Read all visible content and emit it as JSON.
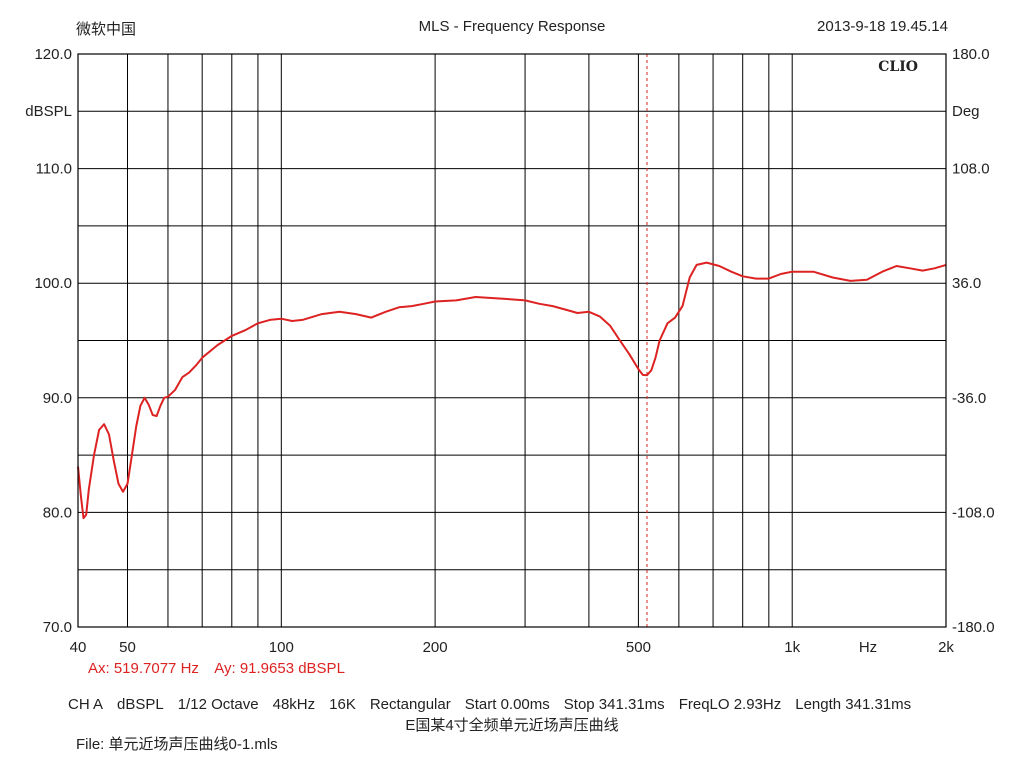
{
  "header": {
    "left": "微软中国",
    "title": "MLS - Frequency Response",
    "datetime": "2013-9-18 19.45.14"
  },
  "chart_data": {
    "type": "line",
    "brand": "CLIO",
    "x_scale": "log",
    "xlim": [
      40,
      2000
    ],
    "ylim": [
      70,
      120
    ],
    "y2lim": [
      -180,
      180
    ],
    "ylabel": "dBSPL",
    "y2label": "Deg",
    "x_unit_label": "Hz",
    "x_gridlines": [
      50,
      60,
      70,
      80,
      90,
      100,
      200,
      300,
      400,
      500,
      600,
      700,
      800,
      900,
      1000
    ],
    "x_ticks": [
      {
        "value": 40,
        "label": "40"
      },
      {
        "value": 50,
        "label": "50"
      },
      {
        "value": 100,
        "label": "100"
      },
      {
        "value": 200,
        "label": "200"
      },
      {
        "value": 500,
        "label": "500"
      },
      {
        "value": 1000,
        "label": "1k"
      },
      {
        "value": 2000,
        "label": "2k"
      }
    ],
    "y_ticks": [
      "70.0",
      "80.0",
      "90.0",
      "100.0",
      "110.0",
      "120.0"
    ],
    "y_tick_values": [
      70,
      80,
      90,
      100,
      110,
      120
    ],
    "y_minor_gridlines": [
      75,
      85,
      95,
      105,
      115
    ],
    "y2_ticks": [
      "-180.0",
      "-108.0",
      "-36.0",
      "36.0",
      "108.0",
      "180.0"
    ],
    "grid": true,
    "cursor_x": 519.7077,
    "series": [
      {
        "color": "#dd2222",
        "x": [
          40,
          40.5,
          41,
          41.5,
          42,
          43,
          44,
          45,
          46,
          47,
          48,
          49,
          50,
          51,
          52,
          53,
          54,
          55,
          56,
          57,
          58,
          59,
          60,
          62,
          64,
          66,
          68,
          70,
          75,
          80,
          85,
          90,
          95,
          100,
          105,
          110,
          120,
          130,
          140,
          150,
          160,
          170,
          180,
          190,
          200,
          220,
          240,
          260,
          280,
          300,
          320,
          340,
          360,
          380,
          400,
          420,
          440,
          460,
          480,
          500,
          510,
          519.7,
          530,
          540,
          550,
          570,
          590,
          610,
          630,
          650,
          680,
          720,
          760,
          800,
          850,
          900,
          950,
          1000,
          1100,
          1200,
          1300,
          1400,
          1500,
          1600,
          1700,
          1800,
          1900,
          2000
        ],
        "y": [
          84,
          81.5,
          79.5,
          79.8,
          82,
          85,
          87.2,
          87.7,
          86.8,
          84.5,
          82.5,
          81.8,
          82.5,
          85,
          87.5,
          89.3,
          90,
          89.4,
          88.5,
          88.4,
          89.3,
          90,
          90.1,
          90.7,
          91.8,
          92.2,
          92.8,
          93.5,
          94.6,
          95.4,
          95.9,
          96.5,
          96.8,
          96.9,
          96.7,
          96.8,
          97.3,
          97.5,
          97.3,
          97.0,
          97.5,
          97.9,
          98.0,
          98.2,
          98.4,
          98.5,
          98.8,
          98.7,
          98.6,
          98.5,
          98.2,
          98.0,
          97.7,
          97.4,
          97.5,
          97.1,
          96.3,
          95.0,
          93.8,
          92.5,
          92.0,
          91.97,
          92.4,
          93.5,
          95.0,
          96.5,
          97.0,
          98.0,
          100.5,
          101.6,
          101.8,
          101.5,
          101.0,
          100.6,
          100.4,
          100.4,
          100.8,
          101.0,
          101.0,
          100.5,
          100.2,
          100.3,
          101.0,
          101.5,
          101.3,
          101.1,
          101.3,
          101.6
        ]
      }
    ]
  },
  "cursor": {
    "ax": "Ax: 519.7077 Hz",
    "ay": "Ay: 91.9653 dBSPL"
  },
  "settings": {
    "channel": "CH A",
    "unit": "dBSPL",
    "smoothing": "1/12 Octave",
    "sample_rate": "48kHz",
    "size": "16K",
    "window": "Rectangular",
    "start": "Start 0.00ms",
    "stop": "Stop 341.31ms",
    "freqlo": "FreqLO 2.93Hz",
    "length": "Length 341.31ms"
  },
  "caption": "E国某4寸全频单元近场声压曲线",
  "file": "File: 单元近场声压曲线0-1.mls"
}
